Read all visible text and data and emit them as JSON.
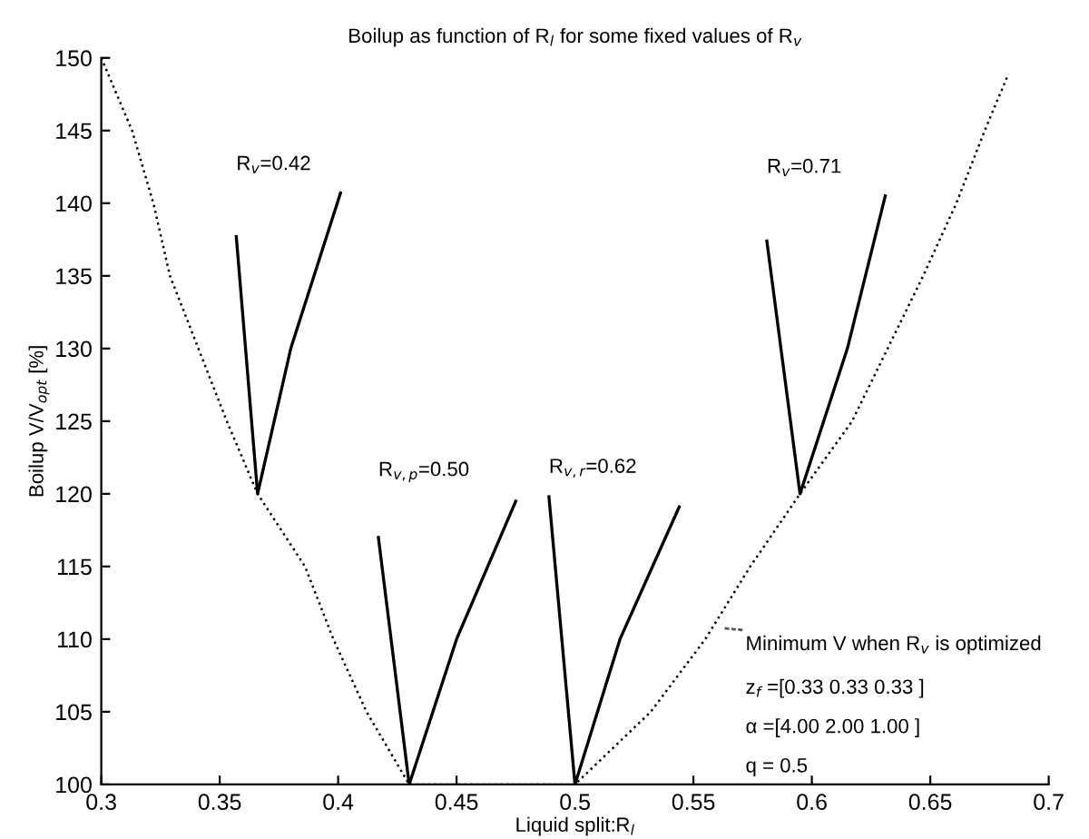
{
  "chart_data": {
    "type": "line",
    "title": "Boilup as function of R$_{l}$ for some fixed values of R$_{v}$",
    "xlabel": "Liquid split:R$_{l}$",
    "ylabel": "Boilup V/V$_{opt}$ [%]",
    "xlim": [
      0.3,
      0.7
    ],
    "ylim": [
      100,
      150
    ],
    "xticks": [
      0.3,
      0.35,
      0.4,
      0.45,
      0.5,
      0.55,
      0.6,
      0.65,
      0.7
    ],
    "yticks": [
      100,
      105,
      110,
      115,
      120,
      125,
      130,
      135,
      140,
      145,
      150
    ],
    "grid": false,
    "legend": false,
    "marker": "none",
    "series": [
      {
        "color": "#000000",
        "line_style": "dotted",
        "x": [
          0.3,
          0.313,
          0.322,
          0.329,
          0.341,
          0.353,
          0.366,
          0.386,
          0.398,
          0.412,
          0.43,
          0.5,
          0.532,
          0.555,
          0.574,
          0.595,
          0.617,
          0.632,
          0.647,
          0.661,
          0.673,
          0.683
        ],
        "values": [
          150,
          145,
          140,
          135,
          130,
          125,
          120,
          115,
          110,
          105,
          100,
          100,
          105,
          110,
          115,
          120,
          125,
          130,
          135,
          140,
          145,
          148.9
        ]
      },
      {
        "name": "R$_{v}$=0.42",
        "color": "#000000",
        "line_style": "solid",
        "x": [
          0.357,
          0.366,
          0.38,
          0.401
        ],
        "values": [
          137.7,
          120,
          130,
          140.7
        ]
      },
      {
        "name": "R$_{v,p}$=0.50",
        "color": "#000000",
        "line_style": "solid",
        "x": [
          0.417,
          0.43,
          0.45,
          0.475
        ],
        "values": [
          117,
          100,
          110,
          119.5
        ]
      },
      {
        "name": "R$_{v,r}$=0.62",
        "color": "#000000",
        "line_style": "solid",
        "x": [
          0.489,
          0.5,
          0.519,
          0.544
        ],
        "values": [
          119.8,
          100,
          110,
          119.1
        ]
      },
      {
        "name": "R$_{v}$=0.71",
        "color": "#000000",
        "line_style": "solid",
        "x": [
          0.581,
          0.595,
          0.615,
          0.631
        ],
        "values": [
          137.4,
          120,
          130,
          140.5
        ]
      }
    ],
    "annotations": [
      {
        "text": "Minimum V when R$_{v}$ is optimized",
        "x": 0.56,
        "y": 110.8
      },
      "z$_{f}$ =[0.33 0.33 0.33 ]",
      "α =[4.00 2.00 1.00 ]",
      "q = 0.5"
    ]
  }
}
